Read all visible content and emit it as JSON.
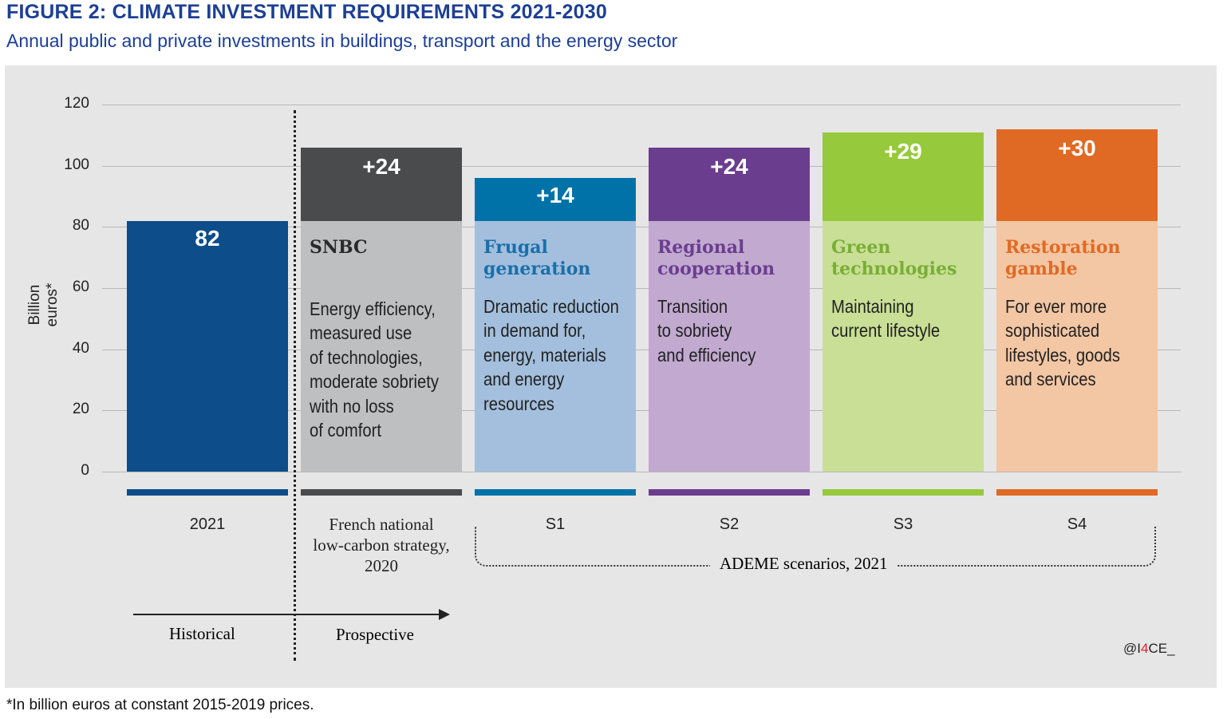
{
  "chart_data": {
    "type": "bar",
    "stacked": true,
    "title": "FIGURE 2: CLIMATE INVESTMENT REQUIREMENTS 2021-2030",
    "subtitle": "Annual public and private investments in buildings, transport and the energy sector",
    "ylabel": "Billion euros*",
    "ylim": [
      0,
      120
    ],
    "yticks": [
      0,
      20,
      40,
      60,
      80,
      100,
      120
    ],
    "grid": true,
    "base_value": 82,
    "bars": [
      {
        "category": "2021",
        "base": 82,
        "increase": 0,
        "label": "82",
        "name": "",
        "desc": "",
        "colors": {
          "base": "#0d4d8a",
          "top": "#0d4d8a",
          "title": "#ffffff",
          "strip": "#0d4d8a"
        }
      },
      {
        "category": "French national\nlow-carbon strategy,\n2020",
        "base": 82,
        "increase": 24,
        "label": "+24",
        "name": "SNBC",
        "desc": "Energy efficiency,\nmeasured use\nof technologies,\nmoderate sobriety\nwith no loss\nof comfort",
        "colors": {
          "base": "#bdbfc1",
          "top": "#4a4b4d",
          "title": "#2a2a2a",
          "strip": "#4a4b4d"
        }
      },
      {
        "category": "S1",
        "base": 82,
        "increase": 14,
        "label": "+14",
        "name": "Frugal\ngeneration",
        "desc": "Dramatic reduction\nin demand for,\nenergy, materials\nand energy\nresources",
        "colors": {
          "base": "#a3bfdd",
          "top": "#0072a8",
          "title": "#1a6fa8",
          "strip": "#0072a8"
        }
      },
      {
        "category": "S2",
        "base": 82,
        "increase": 24,
        "label": "+24",
        "name": "Regional\ncooperation",
        "desc": "Transition\nto sobriety\nand efficiency",
        "colors": {
          "base": "#c1a9d0",
          "top": "#6b3d8f",
          "title": "#6b3d8f",
          "strip": "#6b3d8f"
        }
      },
      {
        "category": "S3",
        "base": 82,
        "increase": 29,
        "label": "+29",
        "name": "Green\ntechnologies",
        "desc": "Maintaining\ncurrent lifestyle",
        "colors": {
          "base": "#c8df95",
          "top": "#97c93c",
          "title": "#79ae36",
          "strip": "#97c93c"
        }
      },
      {
        "category": "S4",
        "base": 82,
        "increase": 30,
        "label": "+30",
        "name": "Restoration\ngamble",
        "desc": "For ever more\nsophisticated\nlifestyles, goods\nand services",
        "colors": {
          "base": "#f3c6a4",
          "top": "#e06a24",
          "title": "#e06a24",
          "strip": "#e06a24"
        }
      }
    ],
    "annotations": {
      "group": "ADEME scenarios, 2021",
      "historical": "Historical",
      "prospective": "Prospective",
      "credit_pre": "@I",
      "credit_mid": "4",
      "credit_post": "CE_"
    }
  },
  "footnote": "*In billion euros at constant 2015-2019 prices."
}
